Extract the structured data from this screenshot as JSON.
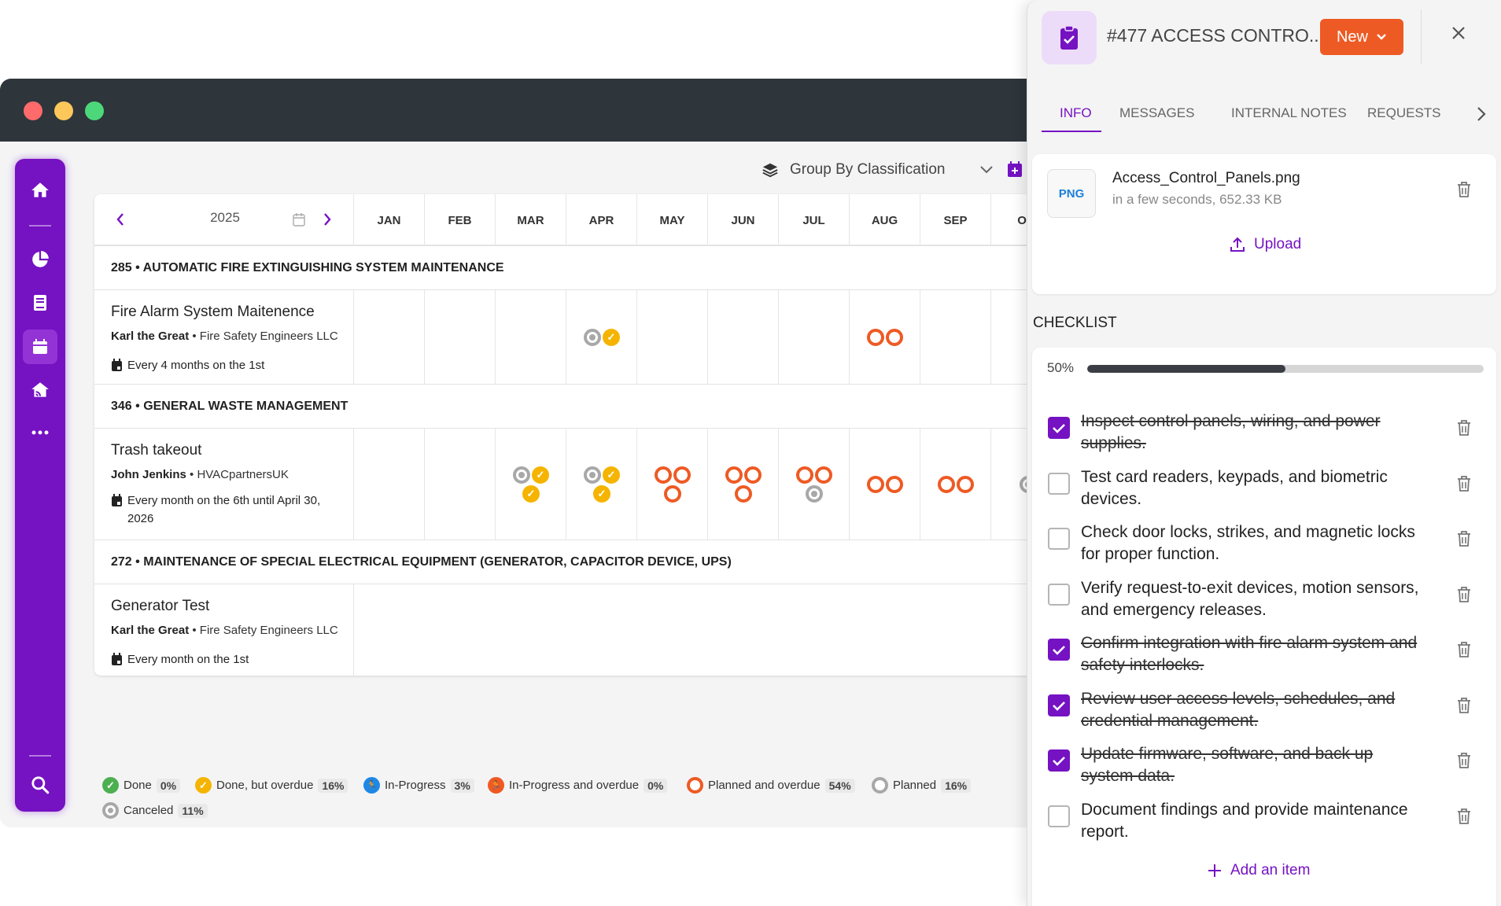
{
  "colors": {
    "brand": "#7512c2",
    "overdue": "#ee5a24",
    "planned": "#a8a8a8",
    "done_overdue": "#f5b400",
    "done": "#4caf50",
    "in_progress": "#1e88e5"
  },
  "toolbar": {
    "group_by": "Group By Classification"
  },
  "calendar": {
    "year": "2025",
    "months": [
      "JAN",
      "FEB",
      "MAR",
      "APR",
      "MAY",
      "JUN",
      "JUL",
      "AUG",
      "SEP",
      "OC"
    ],
    "groups": [
      {
        "label": "285 • AUTOMATIC FIRE EXTINGUISHING SYSTEM MAINTENANCE"
      },
      {
        "label": "346 • GENERAL WASTE MANAGEMENT"
      },
      {
        "label": "272 • MAINTENANCE OF SPECIAL ELECTRICAL EQUIPMENT (GENERATOR, CAPACITOR DEVICE, UPS)"
      }
    ],
    "tasks": [
      {
        "title": "Fire Alarm System Maitenence",
        "assignee": "Karl the Great",
        "company": "• Fire Safety Engineers LLC",
        "schedule": "Every 4 months on the 1st",
        "occurrences": {
          "APR": [
            "planned",
            "done_overdue"
          ],
          "AUG": [
            "overdue",
            "overdue"
          ]
        }
      },
      {
        "title": "Trash takeout",
        "assignee": "John Jenkins",
        "company": "• HVACpartnersUK",
        "schedule": "Every month on the 6th until April 30, 2026",
        "occurrences": {
          "MAR": [
            "planned",
            "done_overdue",
            "done_overdue"
          ],
          "APR": [
            "planned",
            "done_overdue",
            "done_overdue"
          ],
          "MAY": [
            "overdue",
            "overdue",
            "overdue"
          ],
          "JUN": [
            "overdue",
            "overdue",
            "overdue"
          ],
          "JUL": [
            "overdue",
            "overdue",
            "planned"
          ],
          "AUG": [
            "overdue",
            "overdue"
          ],
          "SEP": [
            "overdue",
            "overdue"
          ],
          "OC": [
            "planned"
          ]
        }
      },
      {
        "title": "Generator Test",
        "assignee": "Karl the Great",
        "company": "• Fire Safety Engineers LLC",
        "schedule": "Every month on the 1st",
        "occurrences": {}
      }
    ]
  },
  "legend": [
    {
      "label": "Done",
      "pct": "0%",
      "icon": "check-icon",
      "color": "#4caf50"
    },
    {
      "label": "Done, but overdue",
      "pct": "16%",
      "icon": "check-icon",
      "color": "#f5b400"
    },
    {
      "label": "In-Progress",
      "pct": "3%",
      "icon": "runner-icon",
      "color": "#1e88e5"
    },
    {
      "label": "In-Progress and overdue",
      "pct": "0%",
      "icon": "runner-icon",
      "color": "#ee5a24"
    },
    {
      "label": "Planned and overdue",
      "pct": "54%",
      "icon": "ring-icon",
      "color": "#ee5a24"
    },
    {
      "label": "Planned",
      "pct": "16%",
      "icon": "ring-icon",
      "color": "#a8a8a8"
    },
    {
      "label": "Canceled",
      "pct": "11%",
      "icon": "cancel-icon",
      "color": "#a8a8a8"
    }
  ],
  "drawer": {
    "title": "#477 ACCESS CONTRO...",
    "status": "New",
    "tabs": [
      "INFO",
      "MESSAGES",
      "INTERNAL NOTES",
      "REQUESTS"
    ],
    "attachment": {
      "type": "PNG",
      "name": "Access_Control_Panels.png",
      "meta": "in a few seconds, 652.33 KB"
    },
    "upload_label": "Upload",
    "checklist_title": "CHECKLIST",
    "progress_label": "50%",
    "progress": 0.5,
    "items": [
      {
        "text": "Inspect control panels, wiring, and power supplies.",
        "done": true
      },
      {
        "text": "Test card readers, keypads, and biometric devices.",
        "done": false
      },
      {
        "text": "Check door locks, strikes, and magnetic locks for proper function.",
        "done": false
      },
      {
        "text": "Verify request-to-exit devices, motion sensors, and emergency releases.",
        "done": false
      },
      {
        "text": "Confirm integration with fire alarm system and safety interlocks.",
        "done": true
      },
      {
        "text": "Review user access levels, schedules, and credential management.",
        "done": true
      },
      {
        "text": "Update firmware, software, and back up system data.",
        "done": true
      },
      {
        "text": "Document findings and provide maintenance report.",
        "done": false
      }
    ],
    "add_item_label": "Add an item"
  }
}
